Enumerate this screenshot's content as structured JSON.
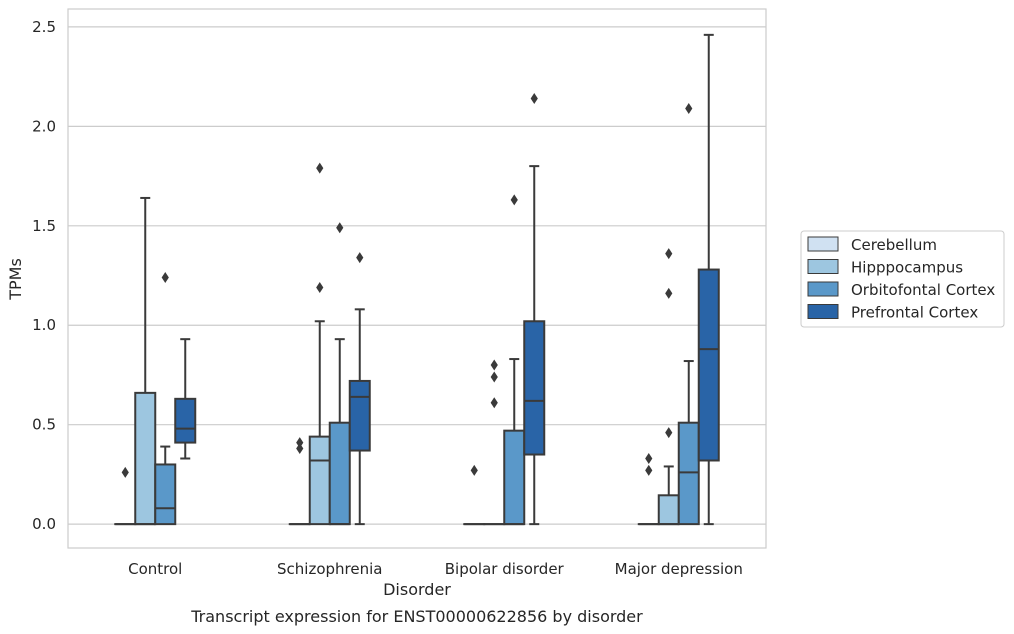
{
  "chart_data": {
    "type": "box",
    "title": "",
    "caption": "Transcript expression for ENST00000622856 by disorder",
    "xlabel": "Disorder",
    "ylabel": "TPMs",
    "ylim": [
      -0.12,
      2.59
    ],
    "yticks": [
      "0.0",
      "0.5",
      "1.0",
      "1.5",
      "2.0",
      "2.5"
    ],
    "grid": true,
    "legend_position": "right",
    "categories": [
      "Control",
      "Schizophrenia",
      "Bipolar disorder",
      "Major depression"
    ],
    "series": [
      {
        "name": "Cerebellum",
        "color": "#d0e1f2",
        "boxes": [
          {
            "q1": 0,
            "median": 0,
            "q3": 0,
            "whisker_low": 0,
            "whisker_high": 0,
            "outliers": [
              0.26
            ]
          },
          {
            "q1": 0,
            "median": 0,
            "q3": 0,
            "whisker_low": 0,
            "whisker_high": 0,
            "outliers": [
              0.38,
              0.41
            ]
          },
          {
            "q1": 0,
            "median": 0,
            "q3": 0,
            "whisker_low": 0,
            "whisker_high": 0,
            "outliers": [
              0.27
            ]
          },
          {
            "q1": 0,
            "median": 0,
            "q3": 0,
            "whisker_low": 0,
            "whisker_high": 0,
            "outliers": [
              0.27,
              0.33
            ]
          }
        ]
      },
      {
        "name": "Hipppocampus",
        "color": "#9dc6e0",
        "boxes": [
          {
            "q1": 0,
            "median": 0,
            "q3": 0.66,
            "whisker_low": 0,
            "whisker_high": 1.64,
            "outliers": []
          },
          {
            "q1": 0,
            "median": 0.32,
            "q3": 0.44,
            "whisker_low": 0,
            "whisker_high": 1.02,
            "outliers": [
              1.19,
              1.79
            ]
          },
          {
            "q1": 0,
            "median": 0,
            "q3": 0,
            "whisker_low": 0,
            "whisker_high": 0,
            "outliers": [
              0.61,
              0.74,
              0.8
            ]
          },
          {
            "q1": 0,
            "median": 0,
            "q3": 0.145,
            "whisker_low": 0,
            "whisker_high": 0.29,
            "outliers": [
              0.46,
              1.16,
              1.36
            ]
          }
        ]
      },
      {
        "name": "Orbitofontal Cortex",
        "color": "#5a98c9",
        "boxes": [
          {
            "q1": 0,
            "median": 0.08,
            "q3": 0.3,
            "whisker_low": 0,
            "whisker_high": 0.39,
            "outliers": [
              1.24
            ]
          },
          {
            "q1": 0,
            "median": 0,
            "q3": 0.51,
            "whisker_low": 0,
            "whisker_high": 0.93,
            "outliers": [
              1.49
            ]
          },
          {
            "q1": 0,
            "median": 0,
            "q3": 0.47,
            "whisker_low": 0,
            "whisker_high": 0.83,
            "outliers": [
              1.63
            ]
          },
          {
            "q1": 0,
            "median": 0.26,
            "q3": 0.51,
            "whisker_low": 0,
            "whisker_high": 0.82,
            "outliers": [
              2.09
            ]
          }
        ]
      },
      {
        "name": "Prefrontal Cortex",
        "color": "#2964a7",
        "boxes": [
          {
            "q1": 0.41,
            "median": 0.48,
            "q3": 0.63,
            "whisker_low": 0.33,
            "whisker_high": 0.93,
            "outliers": []
          },
          {
            "q1": 0.37,
            "median": 0.64,
            "q3": 0.72,
            "whisker_low": 0,
            "whisker_high": 1.08,
            "outliers": [
              1.34
            ]
          },
          {
            "q1": 0.35,
            "median": 0.62,
            "q3": 1.02,
            "whisker_low": 0,
            "whisker_high": 1.8,
            "outliers": [
              2.14
            ]
          },
          {
            "q1": 0.32,
            "median": 0.88,
            "q3": 1.28,
            "whisker_low": 0,
            "whisker_high": 2.46,
            "outliers": []
          }
        ]
      }
    ]
  }
}
